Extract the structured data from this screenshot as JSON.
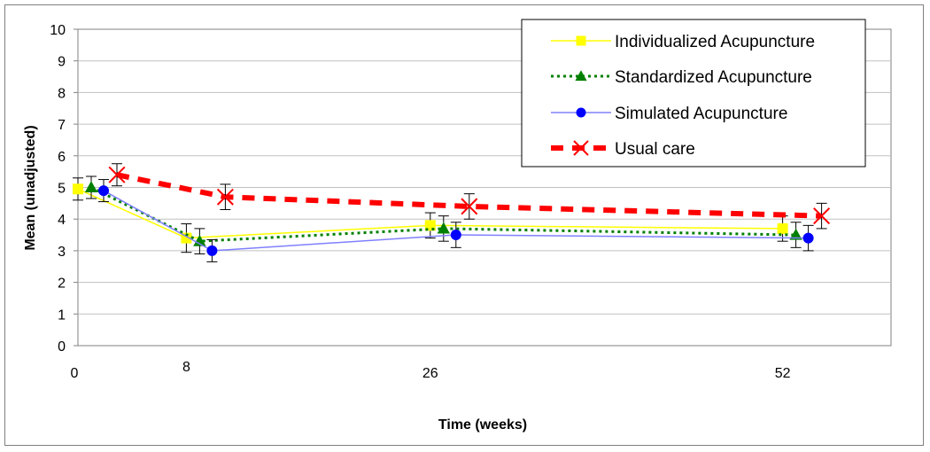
{
  "chart_data": {
    "type": "line",
    "xlabel": "Time (weeks)",
    "ylabel": "Mean (unadjusted)",
    "categories": [
      "0",
      "8",
      "26",
      "52"
    ],
    "ylim": [
      0,
      10
    ],
    "yticks": [
      0,
      1,
      2,
      3,
      4,
      5,
      6,
      7,
      8,
      9,
      10
    ],
    "grid": "horizontal",
    "legend_position": "top-right",
    "series": [
      {
        "name": "Individualized Acupuncture",
        "color": "#FFFF00",
        "marker": "square",
        "line_style": "solid",
        "values": [
          4.95,
          3.4,
          3.8,
          3.7
        ],
        "err": [
          0.35,
          0.45,
          0.4,
          0.4
        ]
      },
      {
        "name": "Standardized Acupuncture",
        "color": "#008000",
        "marker": "triangle",
        "line_style": "dotted",
        "values": [
          5.0,
          3.3,
          3.7,
          3.5
        ],
        "err": [
          0.35,
          0.4,
          0.4,
          0.4
        ]
      },
      {
        "name": "Simulated Acupuncture",
        "color": "#0000FF",
        "marker": "circle",
        "line_style": "solid",
        "line_color": "#8080FF",
        "values": [
          4.9,
          3.0,
          3.5,
          3.4
        ],
        "err": [
          0.35,
          0.35,
          0.4,
          0.4
        ]
      },
      {
        "name": "Usual care",
        "color": "#FF0000",
        "marker": "x",
        "line_style": "dashed",
        "values": [
          5.4,
          4.7,
          4.4,
          4.1
        ],
        "err": [
          0.35,
          0.4,
          0.4,
          0.4
        ]
      }
    ]
  }
}
